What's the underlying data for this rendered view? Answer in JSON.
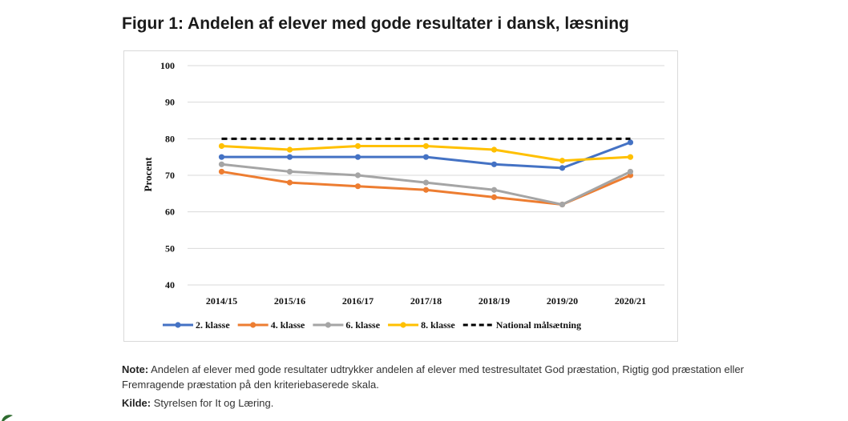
{
  "figure": {
    "title": "Figur 1: Andelen af elever med gode resultater i dansk, læsning"
  },
  "chart_data": {
    "type": "line",
    "ylabel": "Procent",
    "xlabel": "",
    "ylim": [
      40,
      100
    ],
    "yticks": [
      40,
      50,
      60,
      70,
      80,
      90,
      100
    ],
    "grid": true,
    "legend_position": "bottom",
    "categories": [
      "2014/15",
      "2015/16",
      "2016/17",
      "2017/18",
      "2018/19",
      "2019/20",
      "2020/21"
    ],
    "series": [
      {
        "name": "2. klasse",
        "color": "#4472c4",
        "values": [
          75,
          75,
          75,
          75,
          73,
          72,
          79
        ],
        "markers": true,
        "dashed": false
      },
      {
        "name": "4. klasse",
        "color": "#ed7d31",
        "values": [
          71,
          68,
          67,
          66,
          64,
          62,
          70
        ],
        "markers": true,
        "dashed": false
      },
      {
        "name": "6. klasse",
        "color": "#a5a5a5",
        "values": [
          73,
          71,
          70,
          68,
          66,
          62,
          71
        ],
        "markers": true,
        "dashed": false
      },
      {
        "name": "8. klasse",
        "color": "#ffc000",
        "values": [
          78,
          77,
          78,
          78,
          77,
          74,
          75
        ],
        "markers": true,
        "dashed": false
      },
      {
        "name": "National målsætning",
        "color": "#000000",
        "values": [
          80,
          80,
          80,
          80,
          80,
          80,
          80
        ],
        "markers": false,
        "dashed": true
      }
    ]
  },
  "note": {
    "label": "Note:",
    "text": "Andelen af elever med gode resultater udtrykker andelen af elever med testresultatet God præstation, Rigtig god præstation eller Fremragende præstation på den kriteriebaserede skala."
  },
  "source": {
    "label": "Kilde:",
    "text": "Styrelsen for It og Læring."
  }
}
